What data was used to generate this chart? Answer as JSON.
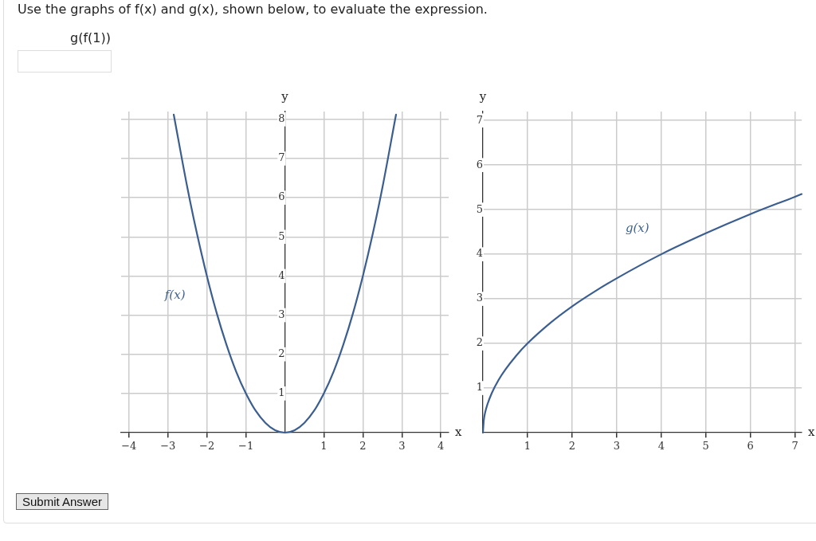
{
  "chart_data": [
    {
      "type": "line",
      "title": "Use the graphs of f(x) and g(x), shown below, to evaluate the expression.",
      "subtitle": "g(f(1))",
      "xlabel": "x",
      "ylabel": "y",
      "annotations": [
        "Submit Answer"
      ],
      "series": [
        {
          "name": "f(x)",
          "color": "#3b5e91",
          "x": [
            -2.85,
            -2.5,
            -2.25,
            -2,
            -1.75,
            -1.5,
            -1.25,
            -1,
            -0.75,
            -0.5,
            -0.25,
            0,
            0.25,
            0.5,
            0.75,
            1,
            1.25,
            1.5,
            1.75,
            2,
            2.25,
            2.5,
            2.85
          ],
          "values": [
            8.12,
            6.25,
            5.06,
            4,
            3.06,
            2.25,
            1.56,
            1,
            0.56,
            0.25,
            0.06,
            0,
            0.06,
            0.25,
            0.56,
            1,
            1.56,
            2.25,
            3.06,
            4,
            5.06,
            6.25,
            8.12
          ]
        }
      ],
      "xlim": [
        -4.2,
        4.2
      ],
      "ylim": [
        0,
        8.2
      ],
      "xticks": [
        -4,
        -3,
        -2,
        -1,
        1,
        2,
        3,
        4
      ],
      "yticks": [
        1,
        2,
        3,
        4,
        5,
        6,
        7,
        8
      ],
      "grid": true,
      "legend": false,
      "marker": "none",
      "line_style": "solid"
    },
    {
      "type": "line",
      "xlabel": "x",
      "ylabel": "y",
      "series": [
        {
          "name": "g(x)",
          "color": "#3b5e91",
          "x": [
            0,
            0.02,
            0.05,
            0.1,
            0.2,
            0.35,
            0.5,
            0.75,
            1,
            1.5,
            2,
            2.5,
            3,
            4,
            5,
            6,
            7,
            7.15
          ],
          "values": [
            0,
            0.28,
            0.45,
            0.63,
            0.89,
            1.18,
            1.41,
            1.73,
            2,
            2.45,
            2.83,
            3.16,
            3.46,
            4,
            4.47,
            4.9,
            5.29,
            5.35
          ]
        }
      ],
      "xlim": [
        0,
        7.15
      ],
      "ylim": [
        0,
        7.2
      ],
      "xticks": [
        1,
        2,
        3,
        4,
        5,
        6,
        7
      ],
      "yticks": [
        1,
        2,
        3,
        4,
        5,
        6,
        7
      ],
      "grid": true,
      "legend": false,
      "marker": "none",
      "line_style": "solid"
    }
  ]
}
